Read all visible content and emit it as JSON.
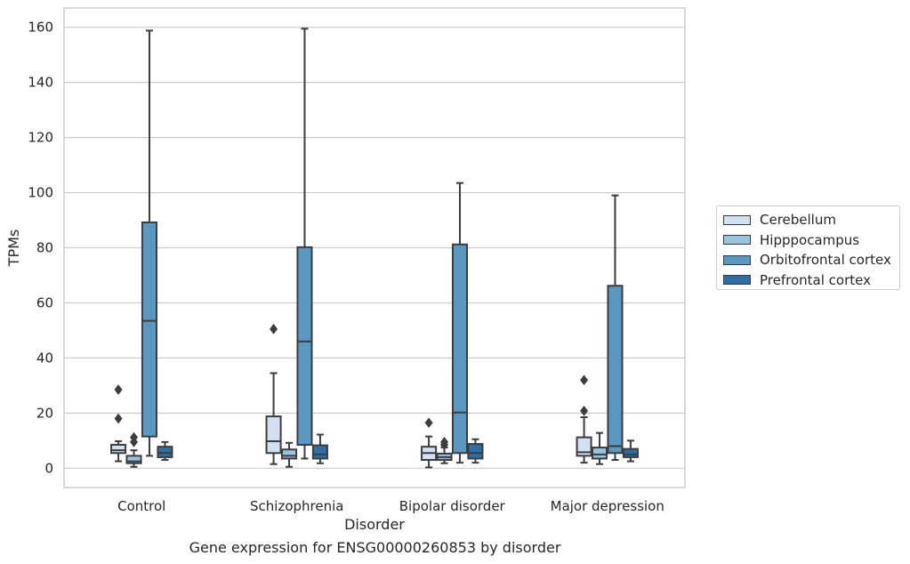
{
  "chart_data": {
    "type": "box",
    "title": "Gene expression for ENSG00000260853 by disorder",
    "xlabel": "Disorder",
    "ylabel": "TPMs",
    "ylim": [
      -7,
      167
    ],
    "yticks": [
      0,
      20,
      40,
      60,
      80,
      100,
      120,
      140,
      160
    ],
    "grid": true,
    "legend_position": "right",
    "categories": [
      "Control",
      "Schizophrenia",
      "Bipolar disorder",
      "Major depression"
    ],
    "series": [
      {
        "name": "Cerebellum",
        "color": "#d1e1f1",
        "boxes": [
          {
            "whisker_low": 2.5,
            "q1": 5.5,
            "median": 6.5,
            "q3": 8.5,
            "whisker_high": 9.8,
            "outliers": [
              18,
              28.5
            ]
          },
          {
            "whisker_low": 1.5,
            "q1": 5.5,
            "median": 9.8,
            "q3": 18.8,
            "whisker_high": 34.5,
            "outliers": [
              50.5
            ]
          },
          {
            "whisker_low": 0.3,
            "q1": 3,
            "median": 5.5,
            "q3": 7.8,
            "whisker_high": 11.5,
            "outliers": [
              16.5
            ]
          },
          {
            "whisker_low": 2,
            "q1": 4.5,
            "median": 5.8,
            "q3": 11.2,
            "whisker_high": 18.5,
            "outliers": [
              20.8,
              32
            ]
          }
        ]
      },
      {
        "name": "Hipppocampus",
        "color": "#99c4e1",
        "boxes": [
          {
            "whisker_low": 0.5,
            "q1": 1.8,
            "median": 2.5,
            "q3": 4.5,
            "whisker_high": 6.5,
            "outliers": [
              9.5,
              11.2
            ]
          },
          {
            "whisker_low": 0.5,
            "q1": 3.5,
            "median": 4.5,
            "q3": 6.8,
            "whisker_high": 9.2,
            "outliers": []
          },
          {
            "whisker_low": 1.8,
            "q1": 3,
            "median": 4,
            "q3": 5.3,
            "whisker_high": 7.5,
            "outliers": [
              8.5,
              9.5
            ]
          },
          {
            "whisker_low": 1.5,
            "q1": 3.5,
            "median": 5,
            "q3": 7.5,
            "whisker_high": 12.8,
            "outliers": []
          }
        ]
      },
      {
        "name": "Orbitofrontal cortex",
        "color": "#5a98c2",
        "boxes": [
          {
            "whisker_low": 4.5,
            "q1": 11.5,
            "median": 53.5,
            "q3": 89.2,
            "whisker_high": 158.8,
            "outliers": []
          },
          {
            "whisker_low": 3.5,
            "q1": 8.5,
            "median": 46,
            "q3": 80.2,
            "whisker_high": 159.5,
            "outliers": []
          },
          {
            "whisker_low": 2,
            "q1": 5.5,
            "median": 20.2,
            "q3": 81.2,
            "whisker_high": 103.5,
            "outliers": []
          },
          {
            "whisker_low": 3,
            "q1": 5.5,
            "median": 8,
            "q3": 66.2,
            "whisker_high": 99,
            "outliers": []
          }
        ]
      },
      {
        "name": "Prefrontal cortex",
        "color": "#2d6ea6",
        "boxes": [
          {
            "whisker_low": 3,
            "q1": 4,
            "median": 5.5,
            "q3": 7.8,
            "whisker_high": 9.5,
            "outliers": []
          },
          {
            "whisker_low": 1.8,
            "q1": 3.5,
            "median": 5,
            "q3": 8.3,
            "whisker_high": 12.2,
            "outliers": []
          },
          {
            "whisker_low": 2,
            "q1": 3.5,
            "median": 5.5,
            "q3": 8.8,
            "whisker_high": 10.5,
            "outliers": []
          },
          {
            "whisker_low": 2.5,
            "q1": 4,
            "median": 5,
            "q3": 7,
            "whisker_high": 10,
            "outliers": []
          }
        ]
      }
    ]
  }
}
